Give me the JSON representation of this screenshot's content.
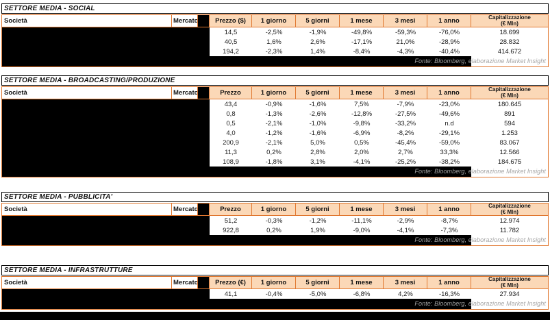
{
  "source_note": "Fonte: Bloomberg, elaborazione Market Insight",
  "colors": {
    "header_fill": "#FBD8B7",
    "table_border": "#E0772F",
    "redaction": "#000000"
  },
  "sections": [
    {
      "id": "social",
      "title": "SETTORE MEDIA - SOCIAL",
      "headers": [
        "Società",
        "Mercato",
        "Prezzo ($)",
        "1 giorno",
        "5 giorni",
        "1 mese",
        "3 mesi",
        "1 anno",
        "Capitalizzazione",
        "(€ Mln)"
      ],
      "rows": [
        [
          "14,5",
          "-2,5%",
          "-1,9%",
          "-49,8%",
          "-59,3%",
          "-76,0%",
          "18.699"
        ],
        [
          "40,5",
          "1,6%",
          "2,6%",
          "-17,1%",
          "21,0%",
          "-28,9%",
          "28.832"
        ],
        [
          "194,2",
          "-2,3%",
          "1,4%",
          "-8,4%",
          "-4,3%",
          "-40,4%",
          "414.672"
        ]
      ]
    },
    {
      "id": "broadcasting-produzione",
      "title": "SETTORE MEDIA - BROADCASTING/PRODUZIONE",
      "headers": [
        "Società",
        "Mercato",
        "Prezzo",
        "1 giorno",
        "5 giorni",
        "1 mese",
        "3 mesi",
        "1 anno",
        "Capitalizzazione",
        "(€ Mln)"
      ],
      "rows": [
        [
          "43,4",
          "-0,9%",
          "-1,6%",
          "7,5%",
          "-7,9%",
          "-23,0%",
          "180.645"
        ],
        [
          "0,8",
          "-1,3%",
          "-2,6%",
          "-12,8%",
          "-27,5%",
          "-49,6%",
          "891"
        ],
        [
          "0,5",
          "-2,1%",
          "-1,0%",
          "-9,8%",
          "-33,2%",
          "n.d",
          "594"
        ],
        [
          "4,0",
          "-1,2%",
          "-1,6%",
          "-6,9%",
          "-8,2%",
          "-29,1%",
          "1.253"
        ],
        [
          "200,9",
          "-2,1%",
          "5,0%",
          "0,5%",
          "-45,4%",
          "-59,0%",
          "83.067"
        ],
        [
          "11,3",
          "0,2%",
          "2,8%",
          "2,0%",
          "2,7%",
          "33,3%",
          "12.566"
        ],
        [
          "108,9",
          "-1,8%",
          "3,1%",
          "-4,1%",
          "-25,2%",
          "-38,2%",
          "184.675"
        ]
      ]
    },
    {
      "id": "pubblicita",
      "title": "SETTORE MEDIA - PUBBLICITA'",
      "headers": [
        "Società",
        "Mercato",
        "Prezzo",
        "1 giorno",
        "5 giorni",
        "1 mese",
        "3 mesi",
        "1 anno",
        "Capitalizzazione",
        "(€ Mln)"
      ],
      "rows": [
        [
          "51,2",
          "-0,3%",
          "-1,2%",
          "-11,1%",
          "-2,9%",
          "-8,7%",
          "12.974"
        ],
        [
          "922,8",
          "0,2%",
          "1,9%",
          "-9,0%",
          "-4,1%",
          "-7,3%",
          "11.782"
        ]
      ]
    },
    {
      "id": "infrastrutture",
      "title": "SETTORE MEDIA - INFRASTRUTTURE",
      "headers": [
        "Società",
        "Mercato",
        "Prezzo (€)",
        "1 giorno",
        "5 giorni",
        "1 mese",
        "3 mesi",
        "1 anno",
        "Capitalizzazione",
        "(€ Mln)"
      ],
      "rows": [
        [
          "41,1",
          "-0,4%",
          "-5,0%",
          "-6,8%",
          "4,2%",
          "-16,3%",
          "27.934"
        ]
      ]
    }
  ]
}
